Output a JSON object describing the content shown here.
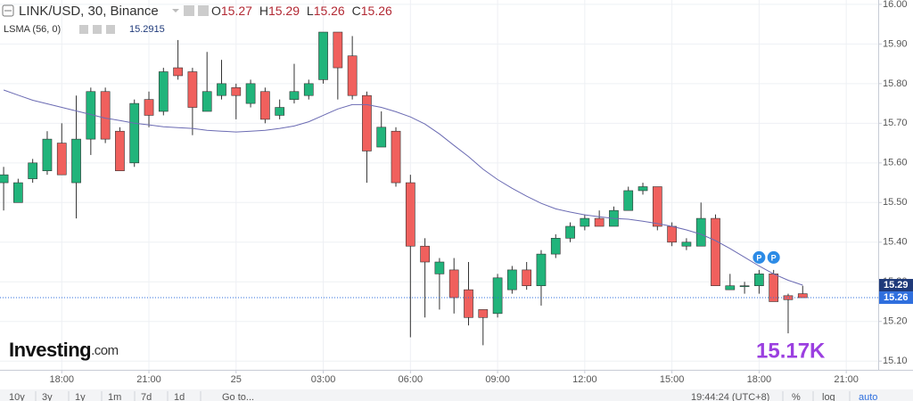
{
  "header": {
    "symbol": "LINK/USD, 30, Binance",
    "ohlc_prefixes": [
      "O",
      "H",
      "L",
      "C"
    ],
    "ohlc_values": [
      15.27,
      15.29,
      15.26,
      15.26
    ],
    "indicator": "LSMA (56, 0)"
  },
  "chart_data": {
    "type": "candlestick",
    "up_color": "#21b47b",
    "down_color": "#f0605d",
    "wick_color": "#333333",
    "open": [
      15.55,
      15.5,
      15.56,
      15.58,
      15.65,
      15.55,
      15.66,
      15.78,
      15.68,
      15.6,
      15.76,
      15.73,
      15.84,
      15.83,
      15.73,
      15.77,
      15.79,
      15.75,
      15.78,
      15.72,
      15.76,
      15.77,
      15.81,
      15.93,
      15.87,
      15.77,
      15.64,
      15.68,
      15.55,
      15.39,
      15.32,
      15.33,
      15.28,
      15.23,
      15.22,
      15.28,
      15.33,
      15.29,
      15.37,
      15.41,
      15.44,
      15.46,
      15.44,
      15.48,
      15.53,
      15.54,
      15.44,
      15.39,
      15.39,
      15.46,
      15.28,
      15.29,
      15.29,
      15.32,
      15.265,
      15.27
    ],
    "high": [
      15.59,
      15.56,
      15.61,
      15.68,
      15.7,
      15.77,
      15.79,
      15.79,
      15.69,
      15.76,
      15.78,
      15.84,
      15.91,
      15.84,
      15.88,
      15.86,
      15.8,
      15.81,
      15.79,
      15.76,
      15.85,
      15.81,
      15.93,
      15.93,
      15.92,
      15.78,
      15.73,
      15.69,
      15.57,
      15.41,
      15.36,
      15.36,
      15.35,
      15.23,
      15.32,
      15.34,
      15.35,
      15.38,
      15.42,
      15.45,
      15.47,
      15.48,
      15.49,
      15.54,
      15.55,
      15.54,
      15.45,
      15.41,
      15.5,
      15.47,
      15.32,
      15.3,
      15.33,
      15.33,
      15.27,
      15.29
    ],
    "low": [
      15.48,
      15.5,
      15.55,
      15.57,
      15.57,
      15.46,
      15.62,
      15.65,
      15.58,
      15.59,
      15.69,
      15.72,
      15.81,
      15.67,
      15.73,
      15.76,
      15.71,
      15.74,
      15.7,
      15.71,
      15.75,
      15.76,
      15.8,
      15.76,
      15.76,
      15.55,
      15.64,
      15.54,
      15.16,
      15.21,
      15.23,
      15.22,
      15.19,
      15.14,
      15.21,
      15.27,
      15.28,
      15.24,
      15.36,
      15.4,
      15.43,
      15.44,
      15.44,
      15.48,
      15.52,
      15.43,
      15.39,
      15.38,
      15.39,
      15.29,
      15.28,
      15.27,
      15.27,
      15.25,
      15.17,
      15.26
    ],
    "close": [
      15.57,
      15.55,
      15.6,
      15.66,
      15.57,
      15.66,
      15.78,
      15.66,
      15.58,
      15.75,
      15.72,
      15.83,
      15.82,
      15.74,
      15.78,
      15.8,
      15.77,
      15.8,
      15.71,
      15.74,
      15.78,
      15.8,
      15.93,
      15.84,
      15.77,
      15.63,
      15.69,
      15.55,
      15.39,
      15.35,
      15.35,
      15.26,
      15.21,
      15.21,
      15.31,
      15.33,
      15.29,
      15.37,
      15.41,
      15.44,
      15.46,
      15.44,
      15.48,
      15.53,
      15.54,
      15.44,
      15.4,
      15.4,
      15.46,
      15.29,
      15.29,
      15.29,
      15.32,
      15.25,
      15.255,
      15.26
    ],
    "series": [
      {
        "name": "LSMA (56, 0)",
        "color": "#6b6bb3",
        "values": [
          15.784,
          15.771,
          15.758,
          15.749,
          15.74,
          15.731,
          15.722,
          15.713,
          15.707,
          15.7,
          15.696,
          15.691,
          15.689,
          15.687,
          15.682,
          15.68,
          15.678,
          15.68,
          15.682,
          15.687,
          15.693,
          15.704,
          15.72,
          15.736,
          15.747,
          15.747,
          15.74,
          15.729,
          15.716,
          15.698,
          15.673,
          15.644,
          15.616,
          15.584,
          15.558,
          15.536,
          15.516,
          15.498,
          15.484,
          15.476,
          15.469,
          15.464,
          15.46,
          15.458,
          15.453,
          15.447,
          15.44,
          15.431,
          15.42,
          15.404,
          15.384,
          15.362,
          15.34,
          15.32,
          15.304,
          15.2915
        ]
      }
    ],
    "xlim": [
      -0.25,
      60.2
    ],
    "xticks": [
      {
        "value": 4,
        "label": "18:00"
      },
      {
        "value": 10,
        "label": "21:00"
      },
      {
        "value": 16,
        "label": "25"
      },
      {
        "value": 22,
        "label": "03:00"
      },
      {
        "value": 28,
        "label": "06:00"
      },
      {
        "value": 34,
        "label": "09:00"
      },
      {
        "value": 40,
        "label": "12:00"
      },
      {
        "value": 46,
        "label": "15:00"
      },
      {
        "value": 52,
        "label": "18:00"
      },
      {
        "value": 58,
        "label": "21:00"
      }
    ],
    "ylim": [
      15.078,
      16.011
    ],
    "yticks": [
      {
        "value": 16.0,
        "label": "16.00"
      },
      {
        "value": 15.9,
        "label": "15.90"
      },
      {
        "value": 15.8,
        "label": "15.80"
      },
      {
        "value": 15.7,
        "label": "15.70"
      },
      {
        "value": 15.6,
        "label": "15.60"
      },
      {
        "value": 15.5,
        "label": "15.50"
      },
      {
        "value": 15.4,
        "label": "15.40"
      },
      {
        "value": 15.3,
        "label": "15.30"
      },
      {
        "value": 15.2,
        "label": "15.20"
      },
      {
        "value": 15.1,
        "label": "15.10"
      }
    ],
    "grid": true,
    "price_tags": [
      {
        "value": 15.2915,
        "label": "15.29",
        "color": "#1f3a7a"
      },
      {
        "value": 15.26,
        "label": "15.26",
        "color": "#2f6fde"
      }
    ],
    "markers": [
      {
        "index": 52,
        "label": "P"
      },
      {
        "index": 53,
        "label": "P"
      }
    ],
    "annotation": "15.17K"
  },
  "logo": {
    "brand": "Investing",
    "suffix": ".com"
  },
  "toolbar": {
    "ranges": [
      "10y",
      "3y",
      "1y",
      "1m",
      "7d",
      "1d"
    ],
    "goto": "Go to...",
    "clock": "19:44:24 (UTC+8)",
    "options": [
      "%",
      "log",
      "auto"
    ]
  }
}
